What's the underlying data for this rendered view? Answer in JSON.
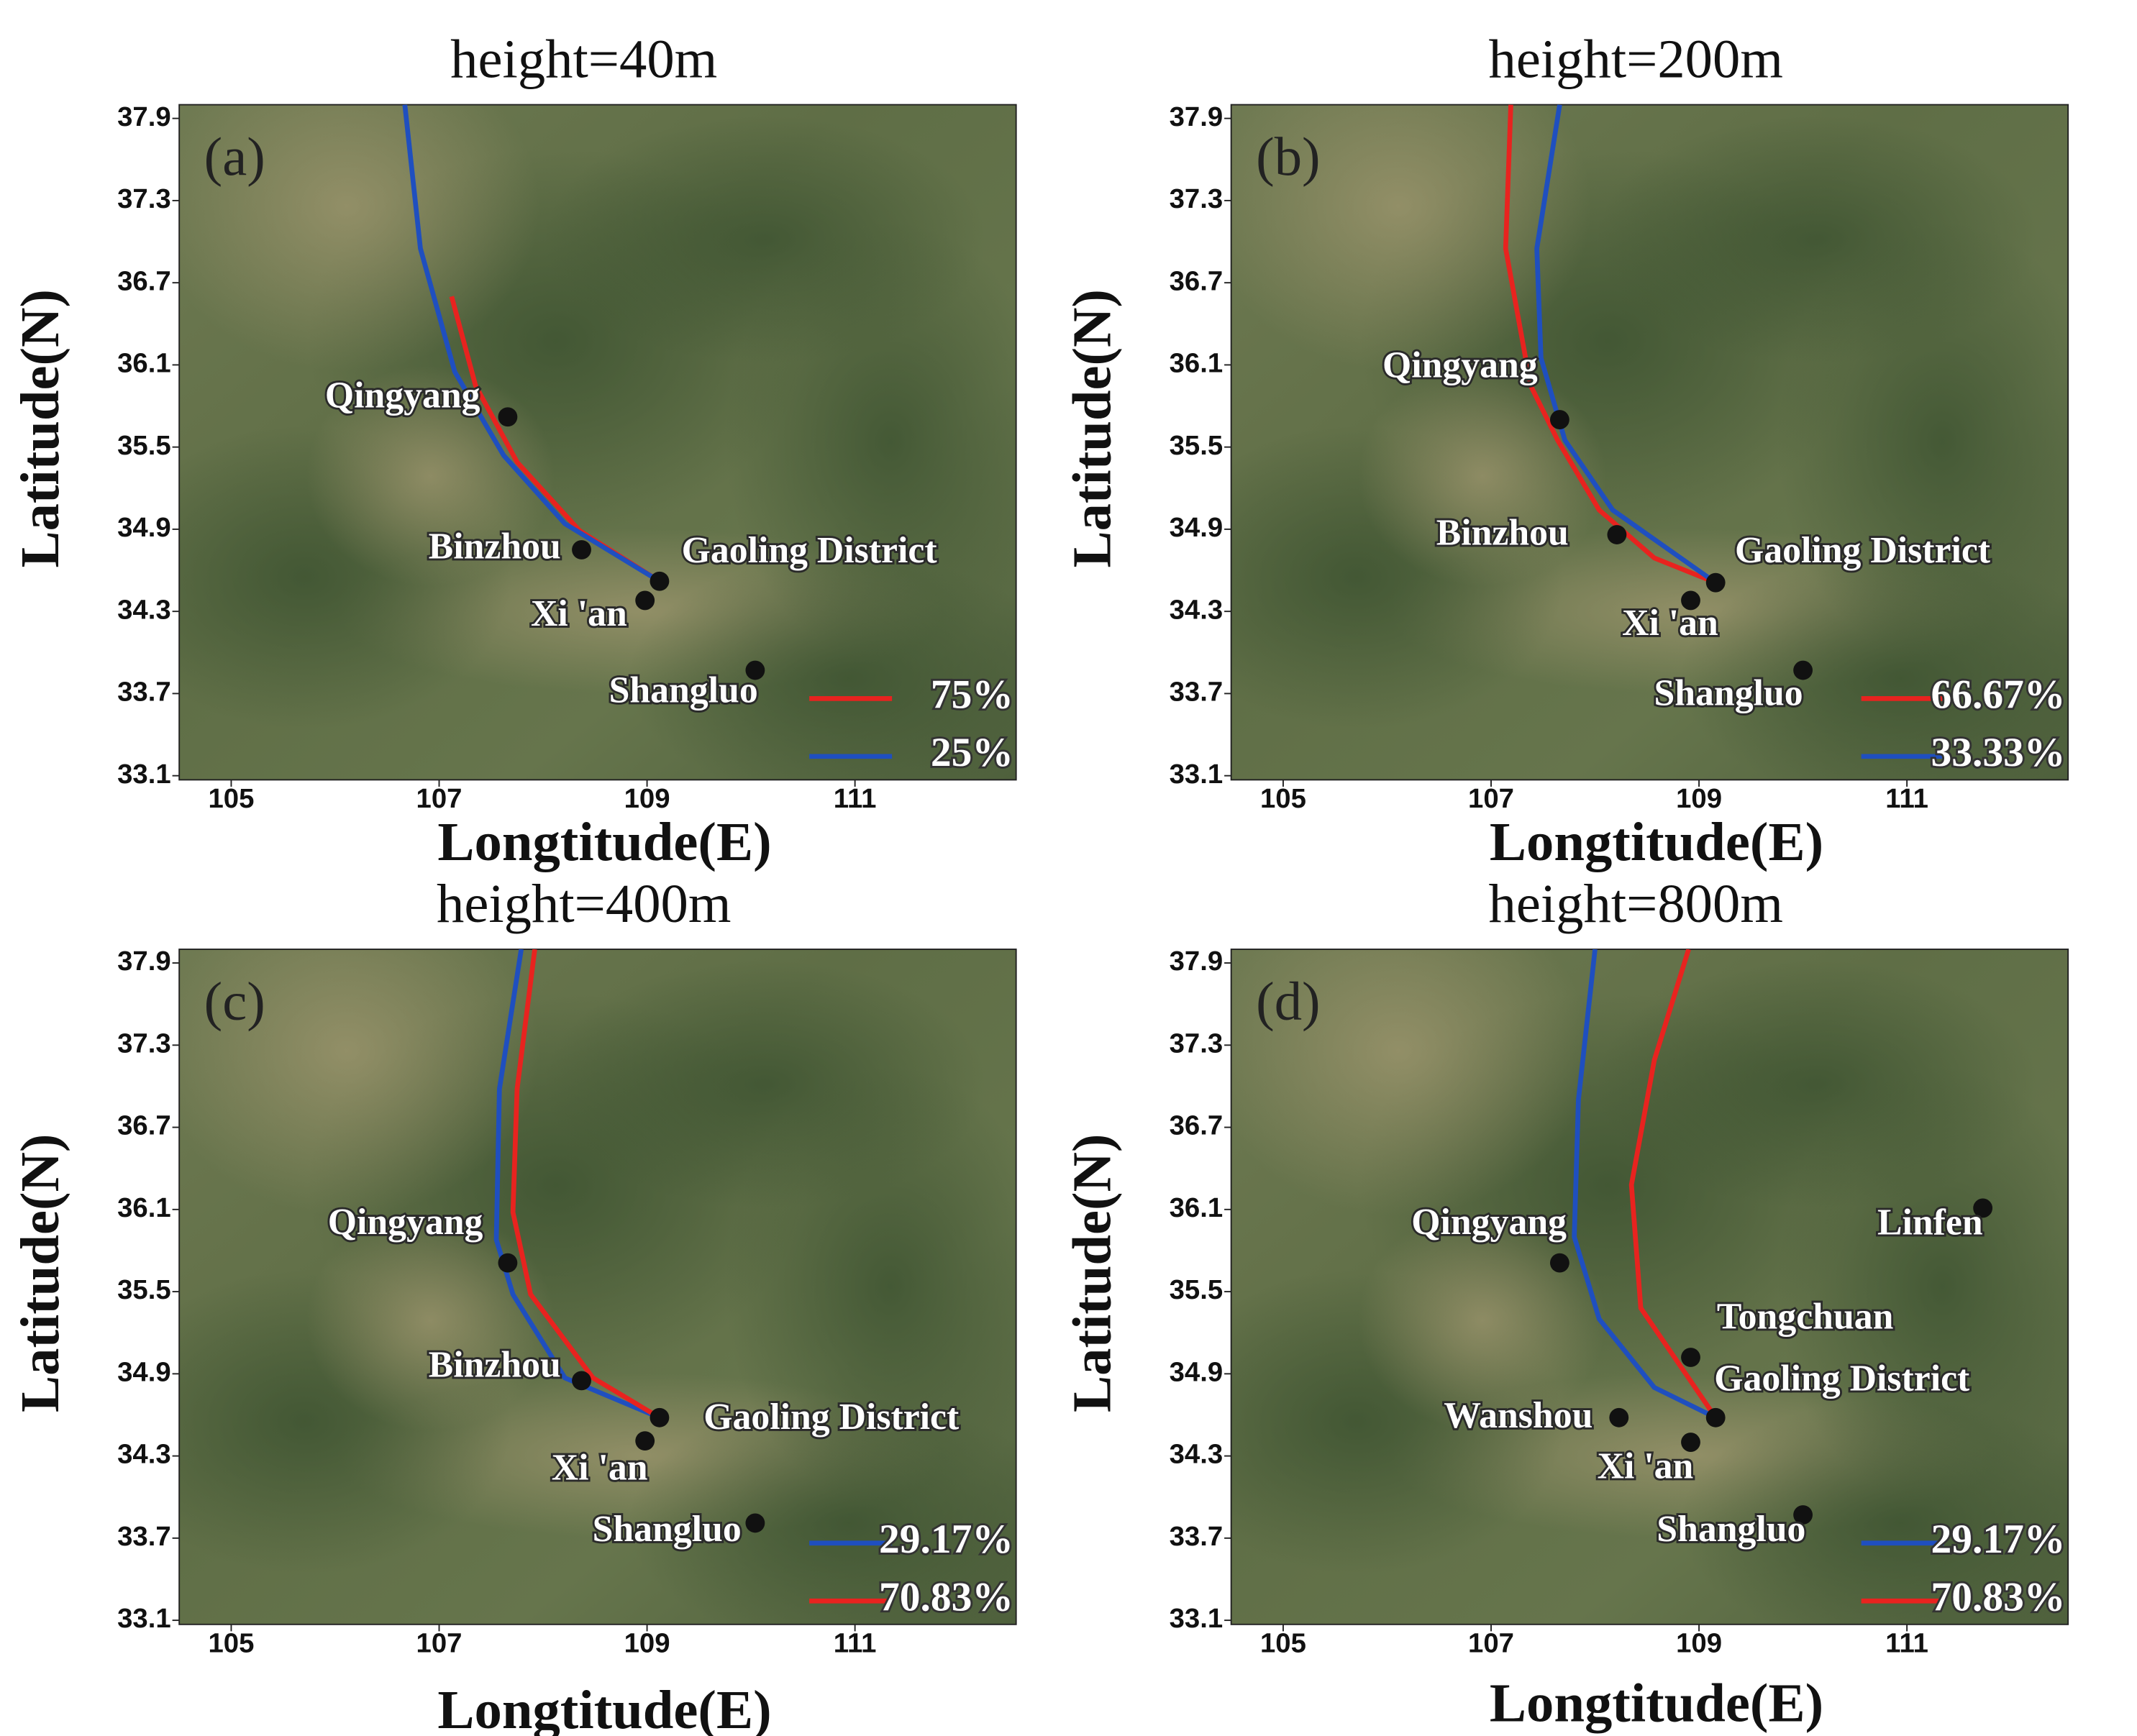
{
  "chart_data": [
    {
      "type": "line",
      "title": "height=40m",
      "panel_label": "(a)",
      "xlabel": "Longtitude(E)",
      "ylabel": "Latitude(N)",
      "xlim": [
        104.5,
        112.55
      ],
      "ylim": [
        33.07,
        38.0
      ],
      "xticks": [
        105,
        107,
        109,
        111
      ],
      "yticks": [
        33.1,
        33.7,
        34.3,
        34.9,
        35.5,
        36.1,
        36.7,
        37.3,
        37.9
      ],
      "series": [
        {
          "name": "75%",
          "color": "#e8231f",
          "x": [
            107.12,
            107.35,
            107.75,
            108.35,
            109.12
          ],
          "values": [
            36.6,
            35.95,
            35.39,
            34.89,
            34.52
          ]
        },
        {
          "name": "25%",
          "color": "#1f4fbf",
          "x": [
            106.67,
            106.82,
            107.15,
            107.62,
            108.21,
            109.12
          ],
          "values": [
            38.0,
            36.95,
            36.05,
            35.44,
            34.94,
            34.52
          ]
        }
      ],
      "cities": [
        {
          "name": "Qingyang",
          "x": 107.66,
          "y": 35.72
        },
        {
          "name": "Binzhou",
          "x": 108.37,
          "y": 34.75
        },
        {
          "name": "Gaoling District",
          "x": 109.12,
          "y": 34.52
        },
        {
          "name": "Xi 'an",
          "x": 108.98,
          "y": 34.38
        },
        {
          "name": "Shangluo",
          "x": 110.04,
          "y": 33.87
        }
      ]
    },
    {
      "type": "line",
      "title": "height=200m",
      "panel_label": "(b)",
      "xlabel": "Longtitude(E)",
      "ylabel": "Latitude(N)",
      "xlim": [
        104.5,
        112.55
      ],
      "ylim": [
        33.07,
        38.0
      ],
      "xticks": [
        105,
        107,
        109,
        111
      ],
      "yticks": [
        33.1,
        33.7,
        34.3,
        34.9,
        35.5,
        36.1,
        36.7,
        37.3,
        37.9
      ],
      "series": [
        {
          "name": "66.67%",
          "color": "#e8231f",
          "x": [
            107.19,
            107.14,
            107.38,
            107.64,
            108.04,
            108.57,
            109.16
          ],
          "values": [
            38.0,
            36.95,
            35.95,
            35.55,
            35.04,
            34.69,
            34.51
          ]
        },
        {
          "name": "33.33%",
          "color": "#1f4fbf",
          "x": [
            107.66,
            107.44,
            107.48,
            107.71,
            108.17,
            109.16
          ],
          "values": [
            38.0,
            36.95,
            36.15,
            35.55,
            35.04,
            34.51
          ]
        }
      ],
      "cities": [
        {
          "name": "Qingyang",
          "x": 107.66,
          "y": 35.7
        },
        {
          "name": "Binzhou",
          "x": 108.21,
          "y": 34.86
        },
        {
          "name": "Gaoling District",
          "x": 109.16,
          "y": 34.51
        },
        {
          "name": "Xi 'an",
          "x": 108.92,
          "y": 34.38
        },
        {
          "name": "Shangluo",
          "x": 110.0,
          "y": 33.87
        }
      ]
    },
    {
      "type": "line",
      "title": "height=400m",
      "panel_label": "(c)",
      "xlabel": "Longtitude(E)",
      "ylabel": "Latitude(N)",
      "xlim": [
        104.5,
        112.55
      ],
      "ylim": [
        33.07,
        38.0
      ],
      "xticks": [
        105,
        107,
        109,
        111
      ],
      "yticks": [
        33.1,
        33.7,
        34.3,
        34.9,
        35.5,
        36.1,
        36.7,
        37.3,
        37.9
      ],
      "series": [
        {
          "name": "29.17%",
          "color": "#1f4fbf",
          "x": [
            107.79,
            107.58,
            107.55,
            107.71,
            108.21,
            109.12
          ],
          "values": [
            38.0,
            36.98,
            35.88,
            35.48,
            34.87,
            34.58
          ]
        },
        {
          "name": "70.83%",
          "color": "#e8231f",
          "x": [
            107.92,
            107.75,
            107.71,
            107.88,
            108.48,
            109.12
          ],
          "values": [
            38.0,
            36.98,
            36.08,
            35.48,
            34.87,
            34.58
          ]
        }
      ],
      "cities": [
        {
          "name": "Qingyang",
          "x": 107.66,
          "y": 35.71
        },
        {
          "name": "Binzhou",
          "x": 108.37,
          "y": 34.85
        },
        {
          "name": "Gaoling District",
          "x": 109.12,
          "y": 34.58
        },
        {
          "name": "Xi 'an",
          "x": 108.98,
          "y": 34.41
        },
        {
          "name": "Shangluo",
          "x": 110.04,
          "y": 33.81
        }
      ]
    },
    {
      "type": "line",
      "title": "height=800m",
      "panel_label": "(d)",
      "xlabel": "Longtitude(E)",
      "ylabel": "Latitude(N)",
      "xlim": [
        104.5,
        112.55
      ],
      "ylim": [
        33.07,
        38.0
      ],
      "xticks": [
        105,
        107,
        109,
        111
      ],
      "yticks": [
        33.1,
        33.7,
        34.3,
        34.9,
        35.5,
        36.1,
        36.7,
        37.3,
        37.9
      ],
      "series": [
        {
          "name": "29.17%",
          "color": "#1f4fbf",
          "x": [
            108.0,
            107.84,
            107.8,
            108.04,
            108.57,
            109.16
          ],
          "values": [
            38.0,
            36.9,
            35.9,
            35.3,
            34.8,
            34.58
          ]
        },
        {
          "name": "70.83%",
          "color": "#e8231f",
          "x": [
            108.9,
            108.57,
            108.35,
            108.44,
            109.16
          ],
          "values": [
            38.0,
            37.19,
            36.28,
            35.38,
            34.58
          ]
        }
      ],
      "cities": [
        {
          "name": "Qingyang",
          "x": 107.66,
          "y": 35.71
        },
        {
          "name": "Linfen",
          "x": 111.73,
          "y": 36.11
        },
        {
          "name": "Tongchuan",
          "x": 108.92,
          "y": 35.02
        },
        {
          "name": "Gaoling District",
          "x": 109.16,
          "y": 34.58
        },
        {
          "name": "Wanshou",
          "x": 108.23,
          "y": 34.58
        },
        {
          "name": "Xi 'an",
          "x": 108.92,
          "y": 34.4
        },
        {
          "name": "Shangluo",
          "x": 110.0,
          "y": 33.87
        }
      ]
    }
  ]
}
